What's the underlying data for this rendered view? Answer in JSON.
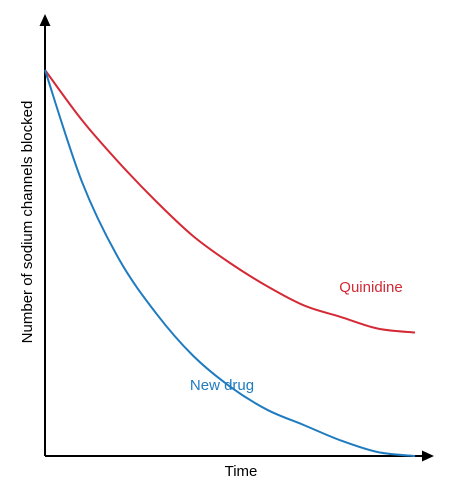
{
  "chart_data": {
    "type": "line",
    "xlabel": "Time",
    "ylabel": "Number of sodium channels blocked",
    "ticks_shown": false,
    "grid": false,
    "legend": "none",
    "xlim": [
      0,
      1
    ],
    "ylim": [
      0,
      1
    ],
    "series": [
      {
        "name": "Quinidine",
        "color": "#d42a36",
        "x": [
          0,
          0.1,
          0.2,
          0.3,
          0.4,
          0.5,
          0.6,
          0.7,
          0.8,
          0.9,
          1.0
        ],
        "y": [
          1.0,
          0.87,
          0.76,
          0.66,
          0.57,
          0.5,
          0.44,
          0.39,
          0.36,
          0.33,
          0.32
        ]
      },
      {
        "name": "New drug",
        "color": "#1f7bbf",
        "x": [
          0,
          0.1,
          0.2,
          0.3,
          0.4,
          0.5,
          0.6,
          0.7,
          0.8,
          0.9,
          1.0
        ],
        "y": [
          1.0,
          0.71,
          0.51,
          0.37,
          0.26,
          0.18,
          0.12,
          0.08,
          0.04,
          0.01,
          0.0
        ]
      }
    ]
  }
}
